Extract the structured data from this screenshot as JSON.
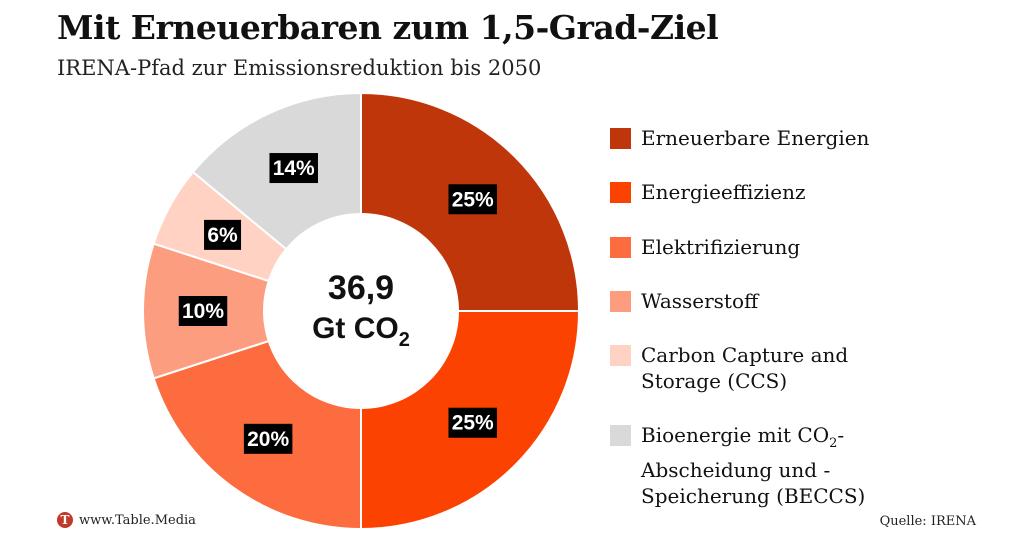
{
  "header": {
    "title": "Mit Erneuerbaren zum 1,5-Grad-Ziel",
    "subtitle": "IRENA-Pfad zur Emissionsreduktion bis 2050"
  },
  "chart_data": {
    "type": "pie",
    "title": "Mit Erneuerbaren zum 1,5-Grad-Ziel",
    "subtitle": "IRENA-Pfad zur Emissionsreduktion bis 2050",
    "center_label": {
      "value": "36,9",
      "unit_main": "Gt CO",
      "unit_sub": "2"
    },
    "categories": [
      "Erneuerbare Energien",
      "Energieeffizienz",
      "Elektrifizierung",
      "Wasserstoff",
      "Carbon Capture and Storage (CCS)",
      "Bioenergie mit CO2-Abscheidung und -Speicherung (BECCS)"
    ],
    "values": [
      25,
      25,
      20,
      10,
      6,
      14
    ],
    "labels": [
      "25%",
      "25%",
      "20%",
      "10%",
      "6%",
      "14%"
    ],
    "colors": [
      "#c0360b",
      "#fc4200",
      "#fd6c3f",
      "#fd9d80",
      "#ffd2c4",
      "#d9d9d9"
    ],
    "legend_position": "right"
  },
  "legend": [
    {
      "line1": "Erneuerbare Energien"
    },
    {
      "line1": "Energieeffizienz"
    },
    {
      "line1": "Elektrifizierung"
    },
    {
      "line1": "Wasserstoff"
    },
    {
      "line1": "Carbon Capture and",
      "line2": "Storage (CCS)"
    },
    {
      "line1_main": "Bioenergie mit CO",
      "line1_sub": "2",
      "line1_end": "-",
      "line2": "Abscheidung und -",
      "line3": "Speicherung (BECCS)"
    }
  ],
  "footer": {
    "logo_letter": "T",
    "site": "www.Table.Media",
    "source": "Quelle: IRENA"
  }
}
